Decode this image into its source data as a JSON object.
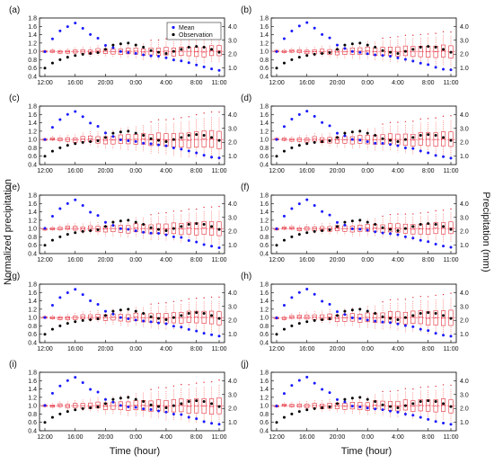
{
  "chart_data": {
    "type": "scatter",
    "ylabel_left": "Normalized precipitation",
    "ylabel_right": "Precipitation (mm)",
    "xlabel": "Time (hour)",
    "x_ticks": [
      "12:00",
      "16:00",
      "20:00",
      "0:00",
      "4:00",
      "8:00",
      "11:00"
    ],
    "ylim_left": [
      0.4,
      1.8
    ],
    "yticks_left": [
      "0.4",
      "0.6",
      "0.8",
      "1.0",
      "1.2",
      "1.4",
      "1.6",
      "1.8"
    ],
    "yticks_right": [
      "1.0",
      "2.0",
      "3.0",
      "4.0"
    ],
    "legend": [
      {
        "name": "Mean",
        "color": "#1a1aff"
      },
      {
        "name": "Observation",
        "color": "#000000"
      }
    ],
    "hours": [
      "12",
      "13",
      "14",
      "15",
      "16",
      "17",
      "18",
      "19",
      "20",
      "21",
      "22",
      "23",
      "0",
      "1",
      "2",
      "3",
      "4",
      "5",
      "6",
      "7",
      "8",
      "9",
      "10",
      "11"
    ],
    "mean_series": [
      1.0,
      1.3,
      1.48,
      1.6,
      1.68,
      1.55,
      1.4,
      1.32,
      1.15,
      1.08,
      1.0,
      0.98,
      0.95,
      0.92,
      0.9,
      0.88,
      0.85,
      0.8,
      0.78,
      0.72,
      0.68,
      0.62,
      0.58,
      0.55
    ],
    "observation_series": [
      0.6,
      0.72,
      0.8,
      0.86,
      0.9,
      0.93,
      0.95,
      0.97,
      1.05,
      1.15,
      1.18,
      1.2,
      1.15,
      1.1,
      1.02,
      0.98,
      0.95,
      1.0,
      1.05,
      1.1,
      1.12,
      1.1,
      1.05,
      0.98
    ],
    "panels": [
      {
        "label": "(a)",
        "show_legend": true,
        "spread": 0.6
      },
      {
        "label": "(b)",
        "show_legend": false,
        "spread": 0.75
      },
      {
        "label": "(c)",
        "show_legend": false,
        "spread": 1.1
      },
      {
        "label": "(d)",
        "show_legend": false,
        "spread": 0.9
      },
      {
        "label": "(e)",
        "show_legend": false,
        "spread": 0.85
      },
      {
        "label": "(f)",
        "show_legend": false,
        "spread": 0.7
      },
      {
        "label": "(g)",
        "show_legend": false,
        "spread": 0.8
      },
      {
        "label": "(h)",
        "show_legend": false,
        "spread": 0.95
      },
      {
        "label": "(i)",
        "show_legend": false,
        "spread": 1.0
      },
      {
        "label": "(j)",
        "show_legend": false,
        "spread": 0.8
      }
    ],
    "grid": false
  }
}
